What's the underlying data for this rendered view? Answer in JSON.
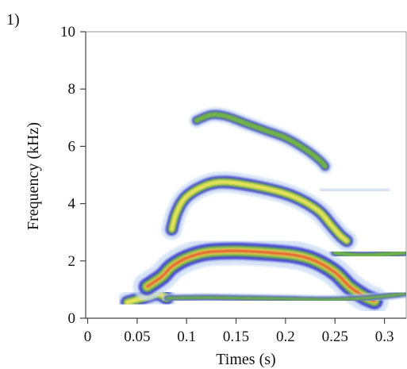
{
  "panel_label": "1)",
  "chart_data": {
    "type": "heatmap",
    "title": "",
    "xlabel": "Times (s)",
    "ylabel": "Frequency (kHz)",
    "xlim": [
      -0.002,
      0.322
    ],
    "ylim": [
      0,
      10
    ],
    "x_ticks": [
      0,
      0.05,
      0.1,
      0.15,
      0.2,
      0.25,
      0.3
    ],
    "x_tick_labels": [
      "0",
      "0.05",
      "0.1",
      "0.15",
      "0.2",
      "0.25",
      "0.3"
    ],
    "y_ticks": [
      0,
      2,
      4,
      6,
      8,
      10
    ],
    "y_tick_labels": [
      "0",
      "2",
      "4",
      "6",
      "8",
      "10"
    ],
    "grid": false,
    "colormap": [
      "#c9dcf4",
      "#3a3ad6",
      "#6fb24a",
      "#e9e35a",
      "#e2572a"
    ],
    "bands": [
      {
        "points": [
          [
            0.04,
            0.55
          ],
          [
            0.055,
            0.7
          ],
          [
            0.07,
            0.85
          ],
          [
            0.08,
            0.7
          ]
        ],
        "intensity": 0.78,
        "thickness_khz": 0.3
      },
      {
        "points": [
          [
            0.06,
            1.1
          ],
          [
            0.075,
            1.45
          ],
          [
            0.085,
            1.8
          ],
          [
            0.1,
            2.1
          ],
          [
            0.12,
            2.3
          ],
          [
            0.15,
            2.35
          ],
          [
            0.18,
            2.3
          ],
          [
            0.21,
            2.2
          ],
          [
            0.23,
            2.0
          ],
          [
            0.25,
            1.6
          ],
          [
            0.265,
            1.1
          ],
          [
            0.28,
            0.75
          ],
          [
            0.29,
            0.6
          ]
        ],
        "intensity": 0.95,
        "thickness_khz": 0.38
      },
      {
        "points": [
          [
            0.085,
            3.1
          ],
          [
            0.09,
            3.7
          ],
          [
            0.1,
            4.25
          ],
          [
            0.12,
            4.65
          ],
          [
            0.14,
            4.75
          ],
          [
            0.17,
            4.6
          ],
          [
            0.2,
            4.35
          ],
          [
            0.22,
            4.05
          ],
          [
            0.235,
            3.7
          ],
          [
            0.245,
            3.3
          ],
          [
            0.255,
            2.9
          ],
          [
            0.262,
            2.7
          ]
        ],
        "intensity": 0.72,
        "thickness_khz": 0.28
      },
      {
        "points": [
          [
            0.11,
            6.9
          ],
          [
            0.125,
            7.1
          ],
          [
            0.14,
            7.05
          ],
          [
            0.16,
            6.8
          ],
          [
            0.18,
            6.55
          ],
          [
            0.2,
            6.3
          ],
          [
            0.22,
            5.9
          ],
          [
            0.235,
            5.5
          ],
          [
            0.24,
            5.3
          ]
        ],
        "intensity": 0.55,
        "thickness_khz": 0.2
      },
      {
        "points": [
          [
            0.08,
            0.7
          ],
          [
            0.12,
            0.72
          ],
          [
            0.16,
            0.7
          ],
          [
            0.2,
            0.68
          ],
          [
            0.24,
            0.65
          ],
          [
            0.28,
            0.7
          ],
          [
            0.32,
            0.85
          ]
        ],
        "intensity": 0.4,
        "thickness_khz": 0.12
      },
      {
        "points": [
          [
            0.25,
            2.3
          ],
          [
            0.27,
            2.2
          ],
          [
            0.29,
            2.2
          ],
          [
            0.32,
            2.3
          ]
        ],
        "intensity": 0.45,
        "thickness_khz": 0.18
      },
      {
        "points": [
          [
            0.24,
            4.45
          ],
          [
            0.27,
            4.5
          ],
          [
            0.3,
            4.5
          ]
        ],
        "intensity": 0.2,
        "thickness_khz": 0.15
      }
    ]
  }
}
